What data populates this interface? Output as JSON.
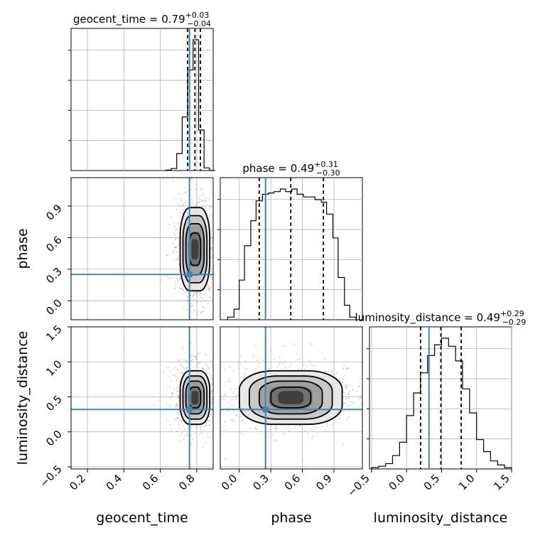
{
  "colors": {
    "truth": "#4682b4",
    "hist": "#000000",
    "grid": "#b0b0b0",
    "quantile": "#000000"
  },
  "chart_data": {
    "type": "corner",
    "parameters": [
      "geocent_time",
      "phase",
      "luminosity_distance"
    ],
    "titles": {
      "geocent_time": {
        "prefix": "geocent_time = 0.79",
        "plus": "+0.03",
        "minus": "−0.04"
      },
      "phase": {
        "prefix": "phase = 0.49",
        "plus": "+0.31",
        "minus": "−0.30"
      },
      "luminosity_distance": {
        "prefix": "luminosity_distance = 0.49",
        "plus": "+0.29",
        "minus": "−0.29"
      }
    },
    "xlabels": [
      "geocent_time",
      "phase",
      "luminosity_distance"
    ],
    "ylabels": [
      "",
      "phase",
      "luminosity_distance"
    ],
    "truths": {
      "geocent_time": 0.76,
      "phase": 0.25,
      "luminosity_distance": 0.32
    },
    "quantiles": {
      "geocent_time": [
        0.75,
        0.79,
        0.82
      ],
      "phase": [
        0.19,
        0.49,
        0.8
      ],
      "luminosity_distance": [
        0.2,
        0.49,
        0.78
      ]
    },
    "ranges": {
      "geocent_time": [
        0.11,
        0.89
      ],
      "phase": [
        -0.18,
        1.17
      ],
      "luminosity_distance": [
        -0.53,
        1.5
      ]
    },
    "ticks": {
      "geocent_time": [
        "0.2",
        "0.4",
        "0.6",
        "0.8"
      ],
      "phase": [
        "0.0",
        "0.3",
        "0.6",
        "0.9"
      ],
      "luminosity_distance": [
        "−0.5",
        "0.0",
        "0.5",
        "1.0",
        "1.5"
      ]
    },
    "histograms": {
      "geocent_time": {
        "edges": [
          0.63,
          0.66,
          0.69,
          0.72,
          0.75,
          0.78,
          0.81,
          0.84,
          0.87,
          0.9
        ],
        "counts": [
          0.3,
          1.5,
          13,
          41,
          77,
          100,
          31,
          2,
          0
        ]
      },
      "phase": {
        "edges": [
          -0.11,
          -0.05,
          0.0,
          0.05,
          0.11,
          0.16,
          0.22,
          0.28,
          0.33,
          0.39,
          0.44,
          0.5,
          0.55,
          0.61,
          0.66,
          0.72,
          0.78,
          0.83,
          0.89,
          0.94,
          1.0,
          1.05,
          1.11
        ],
        "counts": [
          2,
          8,
          30,
          56,
          75,
          90,
          95,
          96,
          97,
          99,
          97,
          99,
          95,
          93,
          93,
          91,
          89,
          80,
          62,
          32,
          11,
          2
        ]
      },
      "luminosity_distance": {
        "edges": [
          -0.5,
          -0.4,
          -0.3,
          -0.2,
          -0.1,
          0.0,
          0.1,
          0.2,
          0.3,
          0.4,
          0.5,
          0.6,
          0.7,
          0.8,
          0.9,
          1.0,
          1.1,
          1.2,
          1.3,
          1.4,
          1.5
        ],
        "counts": [
          1,
          2,
          4,
          10,
          20,
          40,
          57,
          72,
          85,
          93,
          98,
          92,
          81,
          60,
          42,
          22,
          13,
          6,
          3,
          1
        ]
      }
    },
    "contours_2d": [
      {
        "x": "geocent_time",
        "y": "phase",
        "center": [
          0.79,
          0.49
        ],
        "sd": [
          0.05,
          0.3
        ]
      },
      {
        "x": "geocent_time",
        "y": "luminosity_distance",
        "center": [
          0.79,
          0.49
        ],
        "sd": [
          0.05,
          0.29
        ]
      },
      {
        "x": "phase",
        "y": "luminosity_distance",
        "center": [
          0.49,
          0.49
        ],
        "sd": [
          0.3,
          0.29
        ]
      }
    ],
    "grid": true
  }
}
